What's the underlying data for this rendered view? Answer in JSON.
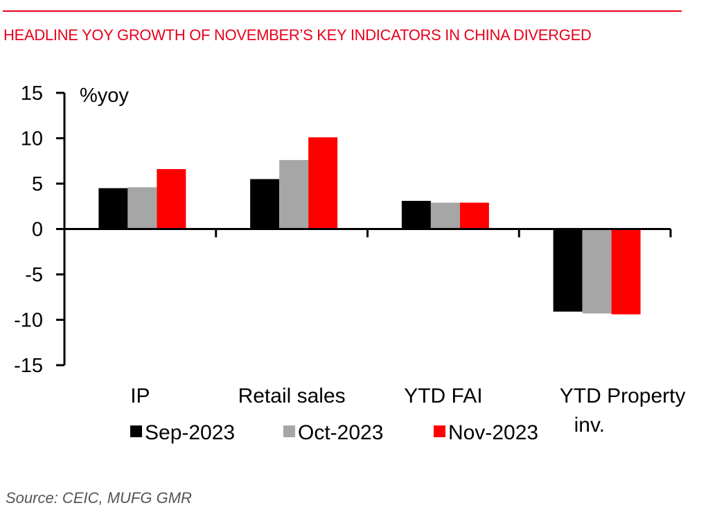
{
  "header": {
    "title": "HEADLINE YOY GROWTH OF NOVEMBER’S KEY INDICATORS IN CHINA DIVERGED"
  },
  "footer": {
    "source": "Source: CEIC, MUFG GMR"
  },
  "colors": {
    "accent": "#e8001c",
    "series": [
      "#000000",
      "#a6a6a6",
      "#ff0000"
    ]
  },
  "chart_data": {
    "type": "bar",
    "title": "HEADLINE YOY GROWTH OF NOVEMBER’S KEY INDICATORS IN CHINA DIVERGED",
    "unit_label": "%yoy",
    "xlabel": "",
    "ylabel": "%yoy",
    "ylim": [
      -15,
      15
    ],
    "yticks": [
      15,
      10,
      5,
      0,
      -5,
      -10,
      -15
    ],
    "ytick_labels": [
      "15",
      "10",
      "5",
      "0",
      "-5",
      "-10",
      "-15"
    ],
    "grid": false,
    "legend_position": "bottom",
    "categories": [
      "IP",
      "Retail sales",
      "YTD FAI",
      "YTD Property inv."
    ],
    "category_label_lines": [
      [
        "IP"
      ],
      [
        "Retail sales"
      ],
      [
        "YTD FAI"
      ],
      [
        "YTD Property",
        "inv."
      ]
    ],
    "series": [
      {
        "name": "Sep-2023",
        "color": "#000000",
        "values": [
          4.5,
          5.5,
          3.1,
          -9.1
        ]
      },
      {
        "name": "Oct-2023",
        "color": "#a6a6a6",
        "values": [
          4.6,
          7.6,
          2.9,
          -9.3
        ]
      },
      {
        "name": "Nov-2023",
        "color": "#ff0000",
        "values": [
          6.6,
          10.1,
          2.9,
          -9.4
        ]
      }
    ]
  }
}
